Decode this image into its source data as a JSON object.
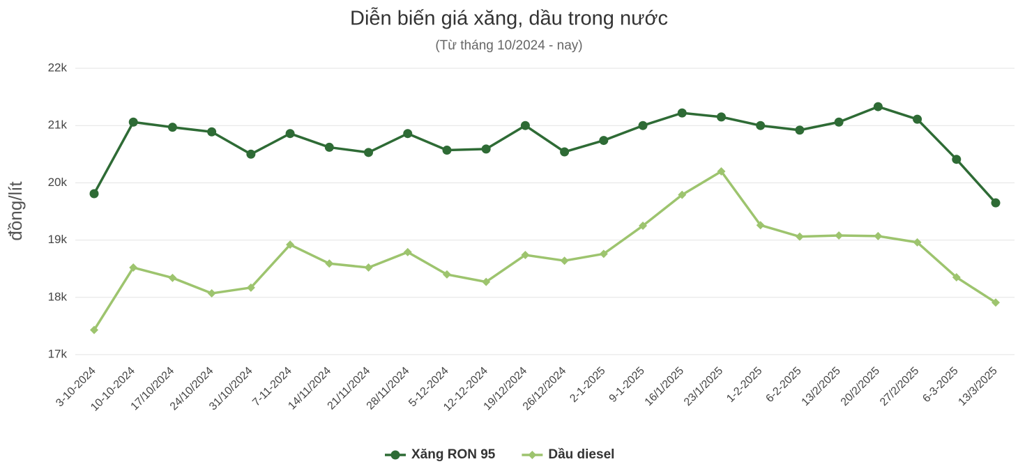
{
  "chart_data": {
    "type": "line",
    "title": "Diễn biến giá xăng, dầu trong nước",
    "subtitle": "(Từ tháng 10/2024 - nay)",
    "y_label": "đồng/lít",
    "categories": [
      "3-10-2024",
      "10-10-2024",
      "17/10/2024",
      "24/10/2024",
      "31/10/2024",
      "7-11-2024",
      "14/11/2024",
      "21/11/2024",
      "28/11/2024",
      "5-12-2024",
      "12-12-2024",
      "19/12/2024",
      "26/12/2024",
      "2-1-2025",
      "9-1-2025",
      "16/1/2025",
      "23/1/2025",
      "1-2-2025",
      "6-2-2025",
      "13/2/2025",
      "20/2/2025",
      "27/2/2025",
      "6-3-2025",
      "13/3/2025"
    ],
    "series": [
      {
        "name": "Xăng RON 95",
        "color": "#2e6b35",
        "marker": "circle",
        "values": [
          19810,
          21060,
          20970,
          20890,
          20500,
          20860,
          20620,
          20530,
          20860,
          20570,
          20590,
          21000,
          20540,
          20740,
          21000,
          21220,
          21150,
          21000,
          20920,
          21060,
          21330,
          21110,
          20410,
          19650
        ]
      },
      {
        "name": "Dầu diesel",
        "color": "#9dc46e",
        "marker": "diamond",
        "values": [
          17430,
          18520,
          18340,
          18070,
          18170,
          18920,
          18590,
          18520,
          18790,
          18400,
          18270,
          18740,
          18640,
          18760,
          19250,
          19790,
          20200,
          19260,
          19060,
          19080,
          19070,
          18960,
          18350,
          17910
        ]
      }
    ],
    "ylim": [
      17000,
      22000
    ],
    "yticks": [
      {
        "value": 17000,
        "label": "17k"
      },
      {
        "value": 18000,
        "label": "18k"
      },
      {
        "value": 19000,
        "label": "19k"
      },
      {
        "value": 20000,
        "label": "20k"
      },
      {
        "value": 21000,
        "label": "21k"
      },
      {
        "value": 22000,
        "label": "22k"
      }
    ],
    "grid": true,
    "legend": "bottom"
  }
}
